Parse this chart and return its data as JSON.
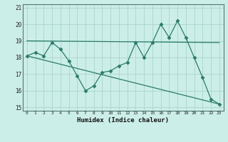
{
  "title": "",
  "xlabel": "Humidex (Indice chaleur)",
  "ylabel": "",
  "bg_color": "#cceee8",
  "grid_color": "#aad4cc",
  "line_color": "#2a7a6a",
  "xlim": [
    -0.5,
    23.5
  ],
  "ylim": [
    14.8,
    21.2
  ],
  "yticks": [
    15,
    16,
    17,
    18,
    19,
    20,
    21
  ],
  "xticks": [
    0,
    1,
    2,
    3,
    4,
    5,
    6,
    7,
    8,
    9,
    10,
    11,
    12,
    13,
    14,
    15,
    16,
    17,
    18,
    19,
    20,
    21,
    22,
    23
  ],
  "series1_x": [
    0,
    1,
    2,
    3,
    4,
    5,
    6,
    7,
    8,
    9,
    10,
    11,
    12,
    13,
    14,
    15,
    16,
    17,
    18,
    19,
    20,
    21,
    22,
    23
  ],
  "series1_y": [
    18.1,
    18.3,
    18.1,
    18.9,
    18.5,
    17.8,
    16.9,
    16.0,
    16.3,
    17.1,
    17.2,
    17.5,
    17.7,
    18.9,
    18.0,
    18.9,
    20.0,
    19.2,
    20.2,
    19.2,
    18.0,
    16.8,
    15.5,
    15.2
  ],
  "series2_x": [
    0,
    23
  ],
  "series2_y": [
    19.0,
    18.9
  ],
  "series3_x": [
    0,
    23
  ],
  "series3_y": [
    18.1,
    15.2
  ],
  "marker": "D",
  "marker_size": 2.5
}
